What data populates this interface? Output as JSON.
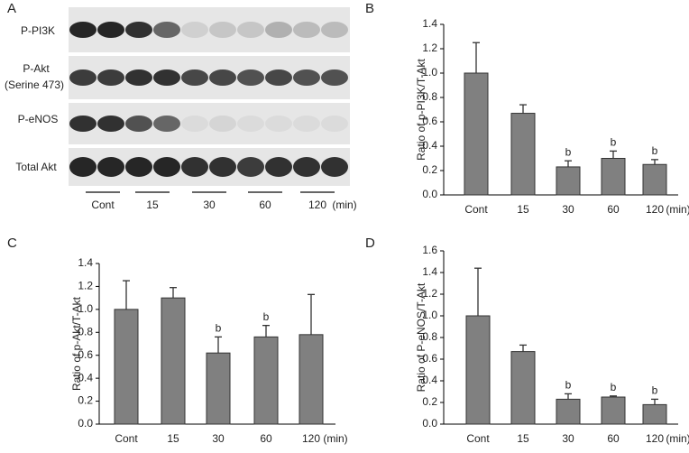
{
  "blot": {
    "label": "A",
    "rows": [
      {
        "label": "P-PI3K"
      },
      {
        "label": "P-Akt",
        "sublabel": "(Serine 473)"
      },
      {
        "label": "P-eNOS"
      },
      {
        "label": "Total Akt"
      }
    ],
    "lanes": [
      "Cont",
      "15",
      "30",
      "60",
      "120"
    ],
    "unit": "(min)"
  },
  "chart_data": [
    {
      "type": "bar",
      "label": "B",
      "ylabel": "Ratio of p-PI3K/T-Akt",
      "x_unit": "(min)",
      "categories": [
        "Cont",
        "15",
        "30",
        "60",
        "120"
      ],
      "values": [
        1.0,
        0.67,
        0.23,
        0.3,
        0.25
      ],
      "errors": [
        0.25,
        0.07,
        0.05,
        0.06,
        0.04
      ],
      "significance": [
        null,
        null,
        "b",
        "b",
        "b"
      ],
      "color": "#808080",
      "ylim": [
        0,
        1.4
      ],
      "yticks": [
        {
          "value": 0,
          "label": "0.0"
        },
        0.2,
        0.4,
        0.6,
        0.8,
        {
          "value": 1,
          "label": "1.0"
        },
        1.2,
        1.4
      ]
    },
    {
      "type": "bar",
      "label": "C",
      "ylabel": "Ratio of p-Akt/T-Akt",
      "x_unit": "(min)",
      "categories": [
        "Cont",
        "15",
        "30",
        "60",
        "120"
      ],
      "values": [
        1.0,
        1.1,
        0.62,
        0.76,
        0.78
      ],
      "errors": [
        0.25,
        0.09,
        0.14,
        0.1,
        0.35
      ],
      "significance": [
        null,
        null,
        "b",
        "b",
        null
      ],
      "color": "#808080",
      "ylim": [
        0,
        1.4
      ],
      "yticks": [
        {
          "value": 0,
          "label": "0.0"
        },
        0.2,
        0.4,
        0.6,
        0.8,
        {
          "value": 1,
          "label": "1.0"
        },
        1.2,
        1.4
      ]
    },
    {
      "type": "bar",
      "label": "D",
      "ylabel": "Ratio of P-eNOS/T-Akt",
      "x_unit": "(min)",
      "categories": [
        "Cont",
        "15",
        "30",
        "60",
        "120"
      ],
      "values": [
        1.0,
        0.67,
        0.23,
        0.25,
        0.18
      ],
      "errors": [
        0.44,
        0.06,
        0.05,
        0.01,
        0.05
      ],
      "significance": [
        null,
        null,
        "b",
        "b",
        "b"
      ],
      "color": "#808080",
      "ylim": [
        0,
        1.6
      ],
      "yticks": [
        {
          "value": 0,
          "label": "0.0"
        },
        0.2,
        0.4,
        0.6,
        0.8,
        {
          "value": 1,
          "label": "1.0"
        },
        1.2,
        1.4,
        1.6
      ]
    }
  ]
}
